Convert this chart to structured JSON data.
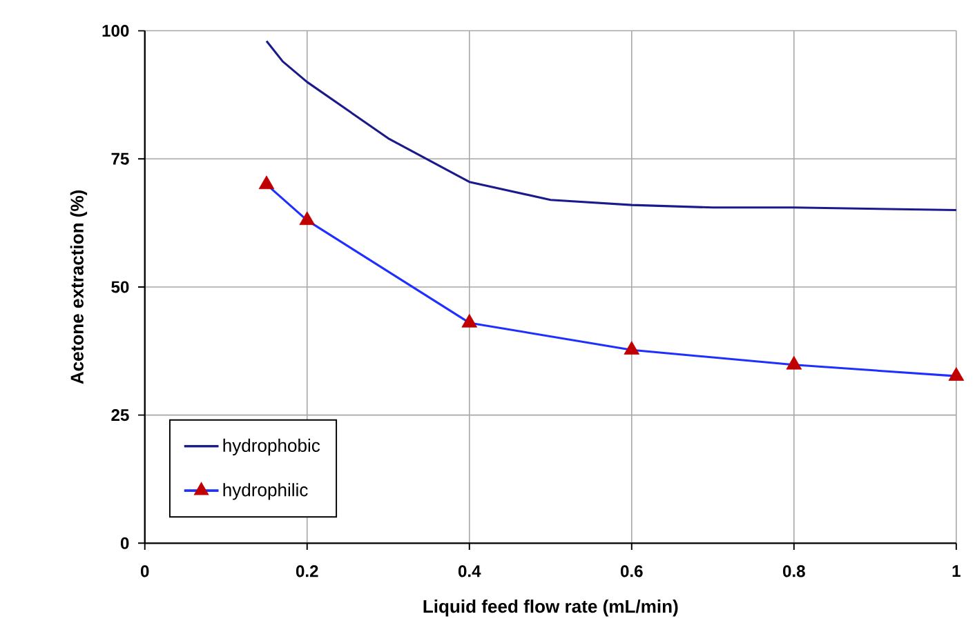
{
  "chart_data": {
    "type": "line",
    "xlabel": "Liquid feed flow rate (mL/min)",
    "ylabel": "Acetone extraction (%)",
    "xlim": [
      0,
      1
    ],
    "ylim": [
      0,
      100
    ],
    "xticks": [
      0,
      0.2,
      0.4,
      0.6,
      0.8,
      1
    ],
    "yticks": [
      0,
      25,
      50,
      75,
      100
    ],
    "grid": true,
    "legend": "bottom left",
    "series": [
      {
        "name": "hydrophobic",
        "color": "#1a1a8c",
        "marker": "none",
        "x": [
          0.15,
          0.17,
          0.2,
          0.3,
          0.4,
          0.5,
          0.6,
          0.7,
          0.8,
          1.0
        ],
        "values": [
          98,
          94,
          90,
          79,
          70.5,
          67,
          66,
          65.5,
          65.5,
          65
        ]
      },
      {
        "name": "hydrophilic",
        "color": "#1f2fff",
        "marker": "triangle",
        "colors": [
          "#c00000",
          "#c00000",
          "#c00000",
          "#c00000",
          "#c00000",
          "#c00000"
        ],
        "x": [
          0.15,
          0.2,
          0.4,
          0.6,
          0.8,
          1.0
        ],
        "values": [
          70,
          63,
          43,
          37.7,
          34.8,
          32.6
        ]
      }
    ]
  }
}
